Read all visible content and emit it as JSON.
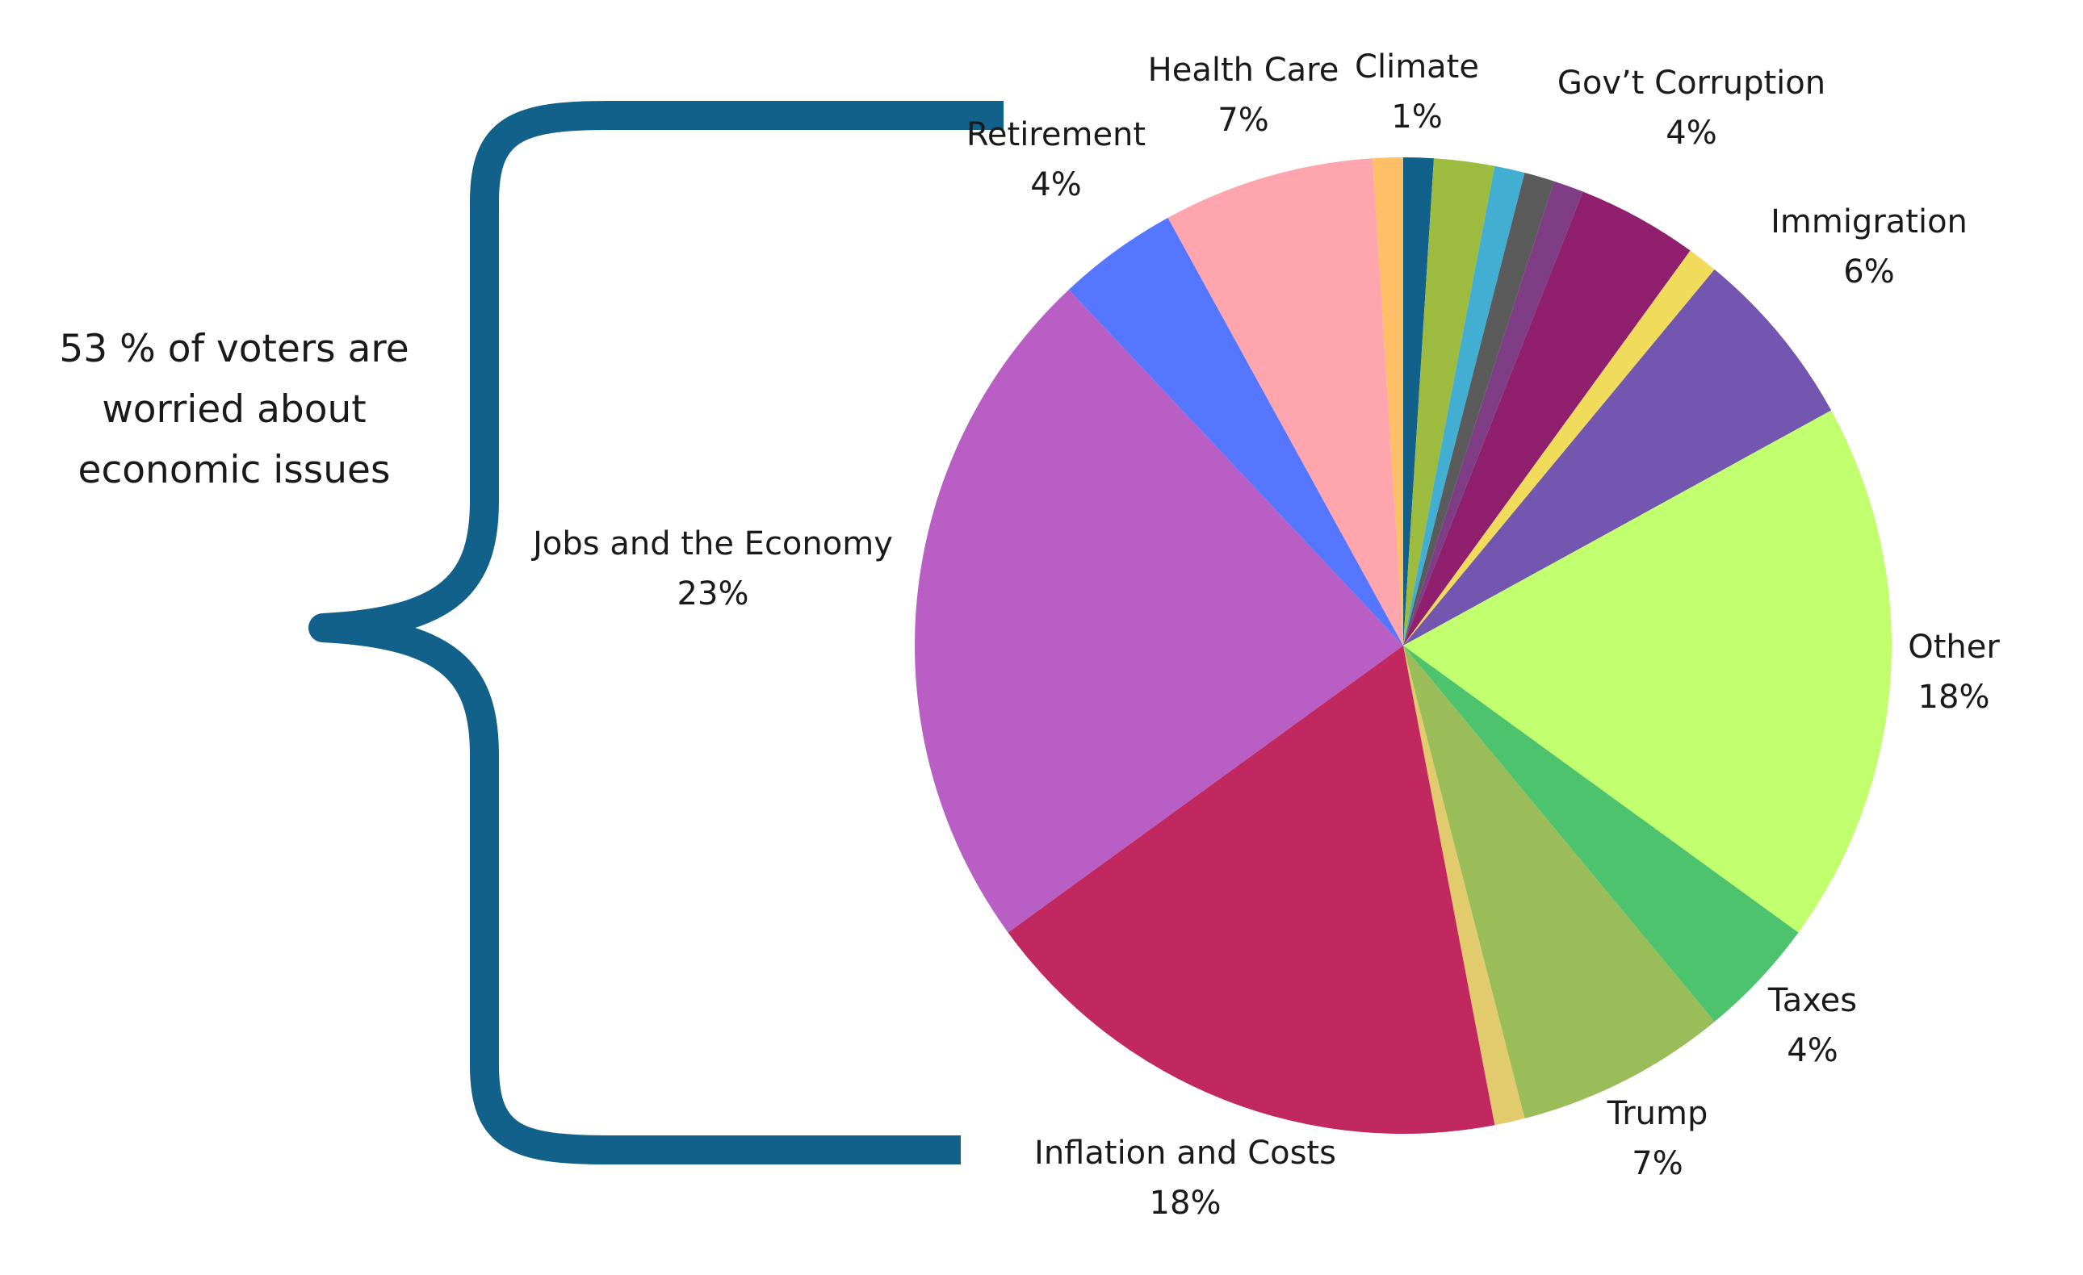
{
  "chart_data": {
    "type": "pie",
    "title": "",
    "start_angle_deg": 0,
    "direction": "clockwise",
    "slices": [
      {
        "name": "Climate",
        "value": 1,
        "label": "Climate",
        "value_label": "1%",
        "color": "#12618a"
      },
      {
        "name": "",
        "value": 2,
        "label": "",
        "value_label": "",
        "color": "#9dbb3f"
      },
      {
        "name": "",
        "value": 1,
        "label": "",
        "value_label": "",
        "color": "#42aed1"
      },
      {
        "name": "",
        "value": 1,
        "label": "",
        "value_label": "",
        "color": "#5b5b5b"
      },
      {
        "name": "",
        "value": 1,
        "label": "",
        "value_label": "",
        "color": "#7f3d86"
      },
      {
        "name": "Gov’t Corruption",
        "value": 4,
        "label": "Gov’t Corruption",
        "value_label": "4%",
        "color": "#901f6d"
      },
      {
        "name": "",
        "value": 1,
        "label": "",
        "value_label": "",
        "color": "#f0db5a"
      },
      {
        "name": "Immigration",
        "value": 6,
        "label": "Immigration",
        "value_label": "6%",
        "color": "#7356b0"
      },
      {
        "name": "Other",
        "value": 18,
        "label": "Other",
        "value_label": "18%",
        "color": "#c2ff6e"
      },
      {
        "name": "Taxes",
        "value": 4,
        "label": "Taxes",
        "value_label": "4%",
        "color": "#4dc36e"
      },
      {
        "name": "Trump",
        "value": 7,
        "label": "Trump",
        "value_label": "7%",
        "color": "#9bbd59"
      },
      {
        "name": "",
        "value": 1,
        "label": "",
        "value_label": "",
        "color": "#e2cb6c"
      },
      {
        "name": "Inflation and Costs",
        "value": 18,
        "label": "Inflation and Costs",
        "value_label": "18%",
        "color": "#c12860"
      },
      {
        "name": "Jobs and the Economy",
        "value": 23,
        "label": "Jobs and the Economy",
        "value_label": "23%",
        "color": "#b95ec4"
      },
      {
        "name": "Retirement",
        "value": 4,
        "label": "Retirement",
        "value_label": "4%",
        "color": "#5576ff"
      },
      {
        "name": "Health Care",
        "value": 7,
        "label": "Health Care",
        "value_label": "7%",
        "color": "#ffa5ad"
      },
      {
        "name": "",
        "value": 1,
        "label": "",
        "value_label": "",
        "color": "#ffbf66"
      }
    ],
    "annotation": {
      "lines": [
        "53 % of voters are",
        "worried about",
        "economic issues"
      ]
    },
    "brace_color": "#12618a"
  }
}
